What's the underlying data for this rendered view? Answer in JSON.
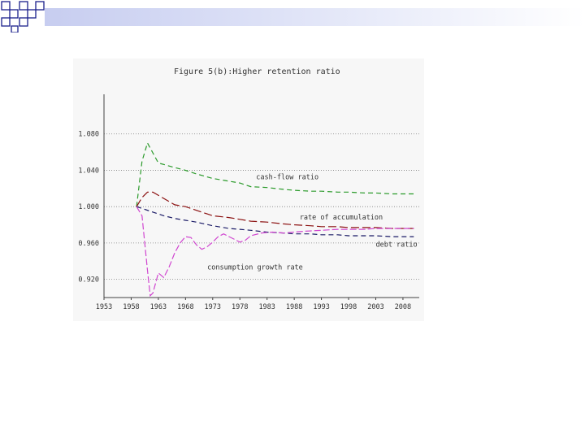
{
  "chart_data": {
    "type": "line",
    "title": "Figure 5(b):Higher retention ratio",
    "xlabel": "",
    "ylabel": "",
    "xlim": [
      1953,
      2011
    ],
    "ylim": [
      0.9,
      1.12
    ],
    "x_ticks": [
      "1953",
      "1958",
      "1963",
      "1968",
      "1973",
      "1978",
      "1983",
      "1988",
      "1993",
      "1998",
      "2003",
      "2008"
    ],
    "y_ticks": [
      "1.080",
      "1.040",
      "1.000",
      "0.960",
      "0.920"
    ],
    "y_tick_values": [
      1.08,
      1.04,
      1.0,
      0.96,
      0.92
    ],
    "grid": "horizontal dotted",
    "legend": "inline labels",
    "series": [
      {
        "name": "cash-flow ratio",
        "color": "#2a9a2a",
        "dash": "6,4",
        "x": [
          1959,
          1960,
          1961,
          1963,
          1966,
          1968,
          1970,
          1973,
          1976,
          1978,
          1980,
          1983,
          1986,
          1988,
          1991,
          1993,
          1996,
          1998,
          2001,
          2003,
          2006,
          2008,
          2010
        ],
        "y": [
          1.0,
          1.05,
          1.07,
          1.048,
          1.043,
          1.04,
          1.036,
          1.031,
          1.028,
          1.026,
          1.022,
          1.021,
          1.019,
          1.018,
          1.017,
          1.017,
          1.016,
          1.016,
          1.015,
          1.015,
          1.014,
          1.014,
          1.014
        ]
      },
      {
        "name": "rate of accumulation",
        "color": "#8b1010",
        "dash": "10,4",
        "x": [
          1959,
          1960,
          1961,
          1962,
          1964,
          1966,
          1968,
          1970,
          1973,
          1976,
          1978,
          1980,
          1983,
          1986,
          1988,
          1991,
          1993,
          1996,
          1998,
          2001,
          2003,
          2006,
          2008,
          2010
        ],
        "y": [
          1.0,
          1.01,
          1.016,
          1.016,
          1.009,
          1.002,
          1.0,
          0.996,
          0.99,
          0.988,
          0.986,
          0.984,
          0.983,
          0.981,
          0.98,
          0.979,
          0.978,
          0.978,
          0.977,
          0.977,
          0.977,
          0.976,
          0.976,
          0.976
        ]
      },
      {
        "name": "debt ratio",
        "color": "#1a1a66",
        "dash": "6,4",
        "x": [
          1959,
          1960,
          1962,
          1964,
          1966,
          1968,
          1970,
          1973,
          1976,
          1978,
          1980,
          1983,
          1986,
          1988,
          1991,
          1993,
          1996,
          1998,
          2001,
          2003,
          2006,
          2008,
          2010
        ],
        "y": [
          1.0,
          0.998,
          0.994,
          0.99,
          0.987,
          0.985,
          0.983,
          0.979,
          0.976,
          0.975,
          0.974,
          0.972,
          0.971,
          0.97,
          0.97,
          0.969,
          0.969,
          0.968,
          0.968,
          0.968,
          0.967,
          0.967,
          0.967
        ]
      },
      {
        "name": "consumption growth rate",
        "color": "#d046d0",
        "dash": "8,3",
        "x": [
          1959,
          1960,
          1961,
          1961.5,
          1962,
          1963,
          1964,
          1965,
          1966,
          1967,
          1968,
          1969,
          1970,
          1971,
          1972,
          1973,
          1974,
          1975,
          1976,
          1977,
          1978,
          1979,
          1980,
          1982,
          1984,
          1986,
          1988,
          1990,
          1993,
          1996,
          1998,
          2001,
          2003,
          2006,
          2008,
          2010
        ],
        "y": [
          1.0,
          0.99,
          0.93,
          0.902,
          0.905,
          0.927,
          0.922,
          0.934,
          0.949,
          0.96,
          0.967,
          0.966,
          0.958,
          0.953,
          0.956,
          0.961,
          0.967,
          0.97,
          0.967,
          0.964,
          0.961,
          0.963,
          0.968,
          0.971,
          0.972,
          0.971,
          0.972,
          0.973,
          0.974,
          0.975,
          0.975,
          0.975,
          0.976,
          0.976,
          0.976,
          0.976
        ]
      }
    ],
    "annotations": [
      {
        "text": "cash-flow ratio",
        "x": 1981,
        "y": 1.03
      },
      {
        "text": "rate of accumulation",
        "x": 1989,
        "y": 0.986
      },
      {
        "text": "debt ratio",
        "x": 2003,
        "y": 0.956
      },
      {
        "text": "consumption growth rate",
        "x": 1972,
        "y": 0.931
      }
    ]
  },
  "colors": {
    "axis": "#404040",
    "grid": "#808080",
    "text": "#333333",
    "panel": "#f7f7f7"
  }
}
